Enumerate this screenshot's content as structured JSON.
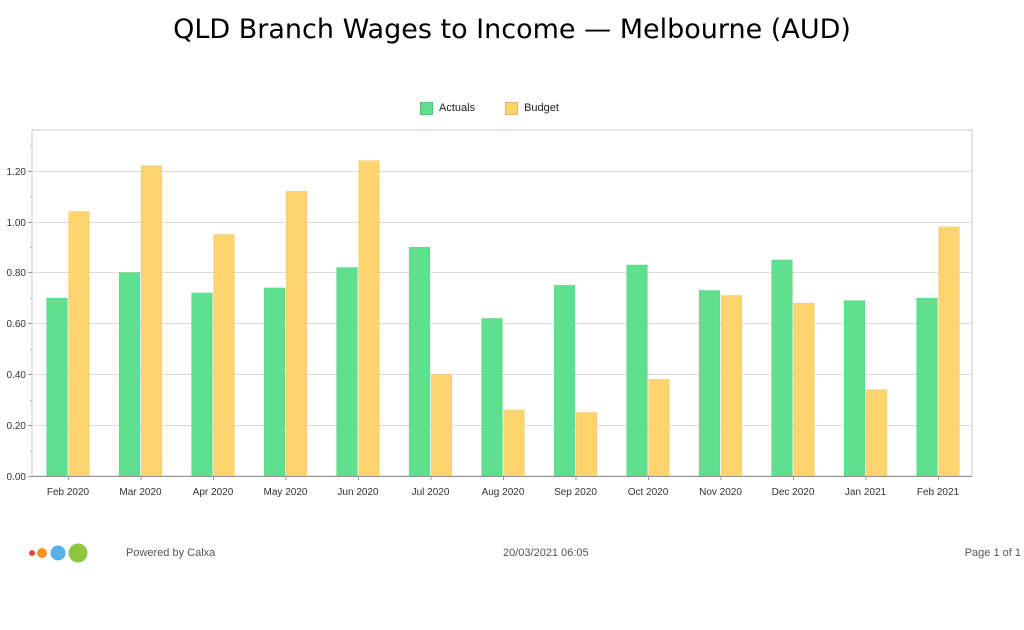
{
  "title": "QLD Branch Wages to Income — Melbourne (AUD)",
  "legend": [
    {
      "label": "Actuals",
      "color": "#5ee08e"
    },
    {
      "label": "Budget",
      "color": "#ffd36e"
    }
  ],
  "chart_data": {
    "type": "bar",
    "title": "QLD Branch Wages to Income — Melbourne (AUD)",
    "categories": [
      "Feb 2020",
      "Mar 2020",
      "Apr 2020",
      "May 2020",
      "Jun 2020",
      "Jul 2020",
      "Aug 2020",
      "Sep 2020",
      "Oct 2020",
      "Nov 2020",
      "Dec 2020",
      "Jan 2021",
      "Feb 2021"
    ],
    "series": [
      {
        "name": "Actuals",
        "color": "#5ee08e",
        "values": [
          0.7,
          0.8,
          0.72,
          0.74,
          0.82,
          0.9,
          0.62,
          0.75,
          0.83,
          0.73,
          0.85,
          0.69,
          0.7
        ]
      },
      {
        "name": "Budget",
        "color": "#ffd36e",
        "values": [
          1.04,
          1.22,
          0.95,
          1.12,
          1.24,
          0.4,
          0.26,
          0.25,
          0.38,
          0.71,
          0.68,
          0.34,
          0.98
        ]
      }
    ],
    "y_ticks": [
      "0.00",
      "0.20",
      "0.40",
      "0.60",
      "0.80",
      "1.00",
      "1.20"
    ],
    "ylim": [
      0,
      1.36
    ],
    "xlabel": "",
    "ylabel": "",
    "grid": true,
    "legend_position": "top-center"
  },
  "footer": {
    "powered": "Powered by Calxa",
    "date": "20/03/2021 06:05",
    "page": "Page 1 of 1"
  },
  "logo_colors": [
    "#f0453a",
    "#f7941d",
    "#58b0e8",
    "#8dc63f"
  ]
}
